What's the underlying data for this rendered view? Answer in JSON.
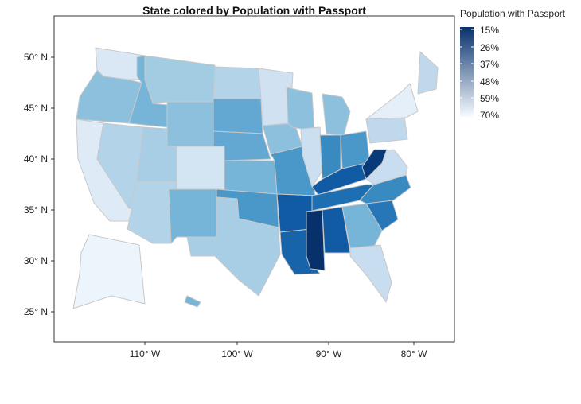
{
  "title": "State colored by Population with Passport",
  "legend": {
    "title": "Population with Passport",
    "labels": [
      "15%",
      "26%",
      "37%",
      "48%",
      "59%",
      "70%"
    ],
    "low_color": "#08306b",
    "high_color": "#f7fbff"
  },
  "axes": {
    "x_ticks": [
      "110° W",
      "100° W",
      "90° W",
      "80° W"
    ],
    "y_ticks": [
      "50° N",
      "45° N",
      "40° N",
      "35° N",
      "30° N",
      "25° N"
    ]
  },
  "chart_data": {
    "type": "choropleth",
    "title": "State colored by Population with Passport",
    "legend_title": "Population with Passport",
    "value_range": [
      15,
      70
    ],
    "states": [
      {
        "name": "Washington",
        "value": 62
      },
      {
        "name": "Oregon",
        "value": 47
      },
      {
        "name": "California",
        "value": 63
      },
      {
        "name": "Idaho",
        "value": 44
      },
      {
        "name": "Nevada",
        "value": 53
      },
      {
        "name": "Utah",
        "value": 51
      },
      {
        "name": "Arizona",
        "value": 53
      },
      {
        "name": "Montana",
        "value": 50
      },
      {
        "name": "Wyoming",
        "value": 47
      },
      {
        "name": "Colorado",
        "value": 60
      },
      {
        "name": "New Mexico",
        "value": 44
      },
      {
        "name": "North Dakota",
        "value": 53
      },
      {
        "name": "South Dakota",
        "value": 41
      },
      {
        "name": "Nebraska",
        "value": 41
      },
      {
        "name": "Kansas",
        "value": 44
      },
      {
        "name": "Oklahoma",
        "value": 37
      },
      {
        "name": "Texas",
        "value": 51
      },
      {
        "name": "Minnesota",
        "value": 59
      },
      {
        "name": "Iowa",
        "value": 47
      },
      {
        "name": "Missouri",
        "value": 37
      },
      {
        "name": "Arkansas",
        "value": 24
      },
      {
        "name": "Louisiana",
        "value": 26
      },
      {
        "name": "Wisconsin",
        "value": 47
      },
      {
        "name": "Illinois",
        "value": 58
      },
      {
        "name": "Michigan",
        "value": 47
      },
      {
        "name": "Indiana",
        "value": 34
      },
      {
        "name": "Ohio",
        "value": 37
      },
      {
        "name": "Kentucky",
        "value": 24
      },
      {
        "name": "Tennessee",
        "value": 28
      },
      {
        "name": "Mississippi",
        "value": 15
      },
      {
        "name": "Alabama",
        "value": 24
      },
      {
        "name": "Georgia",
        "value": 44
      },
      {
        "name": "Florida",
        "value": 57
      },
      {
        "name": "South Carolina",
        "value": 30
      },
      {
        "name": "North Carolina",
        "value": 34
      },
      {
        "name": "Virginia",
        "value": 57
      },
      {
        "name": "West Virginia",
        "value": 17
      },
      {
        "name": "Pennsylvania",
        "value": 55
      },
      {
        "name": "New York",
        "value": 65
      },
      {
        "name": "Maine",
        "value": 55
      },
      {
        "name": "Alaska",
        "value": 67
      },
      {
        "name": "Hawaii",
        "value": 44
      }
    ]
  }
}
